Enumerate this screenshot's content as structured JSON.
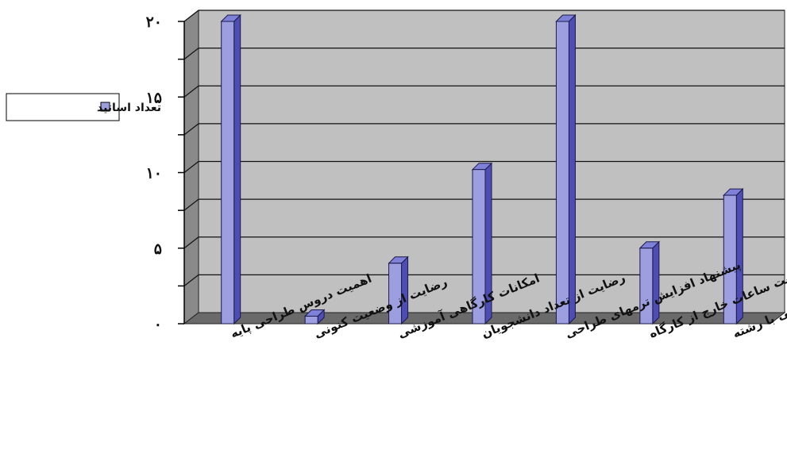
{
  "chart_data": {
    "type": "bar",
    "categories": [
      "اهمیت دروس طراحی پایه",
      "رضایت از وضعیت کنونی",
      "امکانات کارگاهی آموزشی",
      "رضایت از تعداد دانشجویان",
      "پیشنهاد افزایش ترمهای طراحی",
      "کفایت ساعات خارج از کارگاه",
      "متناسب بودن دروس طراحی با رشته"
    ],
    "series": [
      {
        "name": "تعداد اساتید",
        "values": [
          20,
          0.5,
          4,
          10.2,
          20,
          5,
          8.5
        ]
      }
    ],
    "ylim": [
      0,
      20
    ],
    "yticks": [
      0,
      5,
      10,
      15,
      20
    ],
    "ytick_labels": [
      "۰",
      "۵",
      "۱۰",
      "۱۵",
      "۲۰"
    ],
    "minor_ticks": [
      2.5,
      7.5,
      12.5,
      17.5
    ],
    "grid": true,
    "three_d": true,
    "legend_position": "left",
    "colors": {
      "bar_front": "#9c9ee0",
      "bar_side": "#4d4db4",
      "bar_top": "#7f81d8",
      "bar_stroke": "#1a1a4a",
      "wall": "#c0c0c0",
      "side_wall": "#8a8a8a",
      "floor": "#6a6a6a"
    }
  }
}
